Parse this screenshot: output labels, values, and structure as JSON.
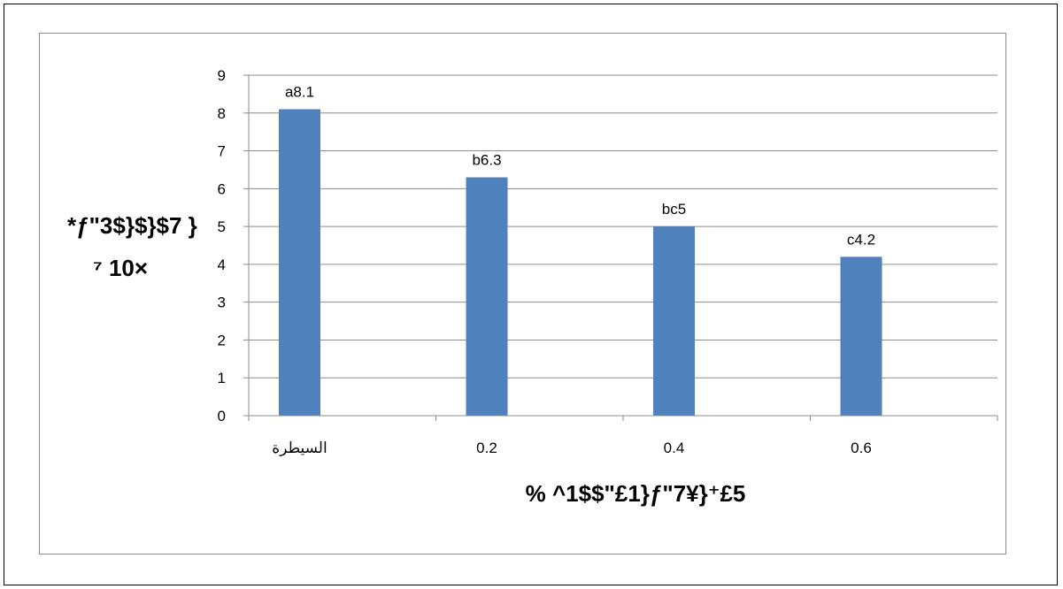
{
  "chart_data": {
    "type": "bar",
    "categories": [
      "السيطرة",
      "0.2",
      "0.4",
      "0.6"
    ],
    "values": [
      8.1,
      6.3,
      5,
      4.2
    ],
    "data_labels": [
      "a8.1",
      "b6.3",
      "bc5",
      "c4.2"
    ],
    "ylim": [
      0,
      9
    ],
    "yticks": [
      0,
      1,
      2,
      3,
      4,
      5,
      6,
      7,
      8,
      9
    ],
    "grid": true,
    "bar_color": "#4f81bd",
    "ylabel_line1": "*ƒ\"3$}$}$7 }",
    "ylabel_line2": "⁷ 10×",
    "xlabel": "% ^1$$\"£1}ƒ\"7¥}⁺£5"
  }
}
